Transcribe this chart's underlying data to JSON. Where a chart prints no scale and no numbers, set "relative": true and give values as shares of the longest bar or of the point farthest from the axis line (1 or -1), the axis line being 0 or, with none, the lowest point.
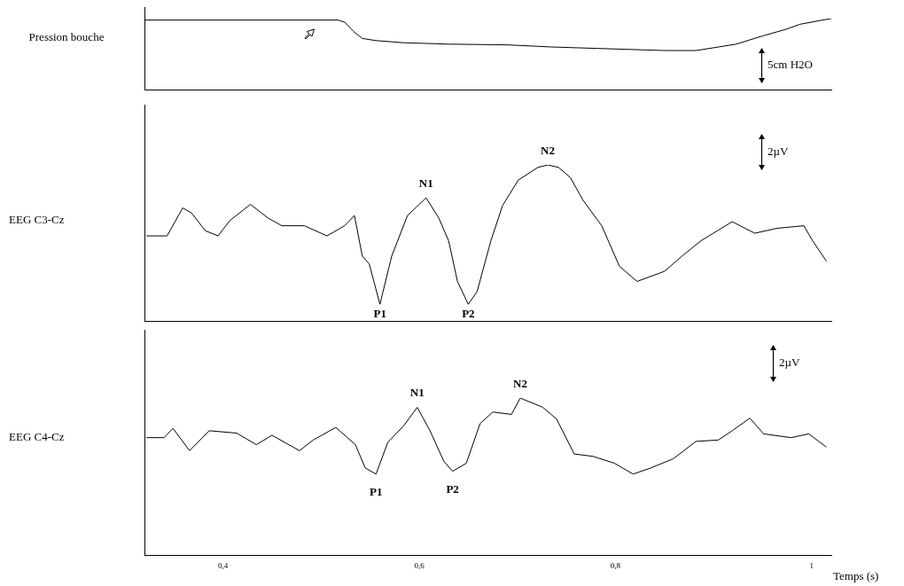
{
  "chart_data": [
    {
      "type": "line",
      "relative": true,
      "ylabel": "Pression bouche",
      "tick_labels": false,
      "xlim": [
        0.32,
        1.02
      ],
      "color": "#000000",
      "marker": "none",
      "annotations": [
        "5cm H2O"
      ],
      "x": [
        0.32,
        0.517,
        0.524,
        0.533,
        0.542,
        0.556,
        0.584,
        0.63,
        0.689,
        0.735,
        0.781,
        0.85,
        0.882,
        0.905,
        0.923,
        0.951,
        0.974,
        0.988,
        1.011,
        1.02
      ],
      "values": [
        0.98,
        0.98,
        0.95,
        0.82,
        0.72,
        0.69,
        0.66,
        0.64,
        0.63,
        0.6,
        0.58,
        0.55,
        0.55,
        0.6,
        0.64,
        0.76,
        0.85,
        0.92,
        0.98,
        1
      ]
    },
    {
      "type": "line",
      "relative": true,
      "ylabel": "EEG C3-Cz",
      "tick_labels": false,
      "xlim": [
        0.32,
        1.02
      ],
      "color": "#000000",
      "marker": "none",
      "annotations": [
        "2µV",
        {
          "text": "P1",
          "x": 0.56,
          "y": 0.107
        },
        {
          "text": "N1",
          "x": 0.607,
          "y": 0.789
        },
        {
          "text": "P2",
          "x": 0.65,
          "y": 0.107
        },
        {
          "text": "N2",
          "x": 0.731,
          "y": 1
        }
      ],
      "x": [
        0.322,
        0.343,
        0.359,
        0.368,
        0.382,
        0.395,
        0.407,
        0.428,
        0.446,
        0.46,
        0.483,
        0.506,
        0.524,
        0.534,
        0.542,
        0.549,
        0.56,
        0.572,
        0.588,
        0.607,
        0.62,
        0.63,
        0.639,
        0.65,
        0.659,
        0.673,
        0.685,
        0.701,
        0.721,
        0.731,
        0.742,
        0.754,
        0.767,
        0.786,
        0.804,
        0.822,
        0.85,
        0.868,
        0.887,
        0.919,
        0.942,
        0.965,
        0.992,
        1.001,
        1.015
      ],
      "values": [
        0.545,
        0.545,
        0.724,
        0.692,
        0.578,
        0.545,
        0.643,
        0.747,
        0.659,
        0.61,
        0.61,
        0.545,
        0.61,
        0.675,
        0.416,
        0.367,
        0.107,
        0.416,
        0.675,
        0.789,
        0.659,
        0.513,
        0.253,
        0.107,
        0.188,
        0.513,
        0.74,
        0.903,
        0.984,
        1,
        0.984,
        0.919,
        0.773,
        0.61,
        0.351,
        0.253,
        0.318,
        0.416,
        0.513,
        0.636,
        0.562,
        0.594,
        0.61,
        0.513,
        0.383
      ]
    },
    {
      "type": "line",
      "relative": true,
      "ylabel": "EEG C4-Cz",
      "xlabel": "Temps (s)",
      "tick_labels": "x",
      "xlim": [
        0.32,
        1.02
      ],
      "xticks": [
        {
          "value": 0.4,
          "label": "0,4"
        },
        {
          "value": 0.6,
          "label": "0,6"
        },
        {
          "value": 0.8,
          "label": "0,8"
        },
        1
      ],
      "color": "#000000",
      "marker": "none",
      "annotations": [
        "2µV",
        {
          "text": "P1",
          "x": 0.556,
          "y": 0.516
        },
        {
          "text": "N1",
          "x": 0.598,
          "y": 0.941
        },
        {
          "text": "P2",
          "x": 0.634,
          "y": 0.534
        },
        {
          "text": "N2",
          "x": 0.703,
          "y": 1
        }
      ],
      "x": [
        0.322,
        0.34,
        0.349,
        0.366,
        0.386,
        0.414,
        0.434,
        0.45,
        0.478,
        0.492,
        0.515,
        0.535,
        0.545,
        0.556,
        0.568,
        0.584,
        0.598,
        0.611,
        0.625,
        0.634,
        0.648,
        0.662,
        0.675,
        0.694,
        0.703,
        0.726,
        0.74,
        0.758,
        0.777,
        0.799,
        0.818,
        0.836,
        0.859,
        0.882,
        0.905,
        0.919,
        0.937,
        0.951,
        0.979,
        0.997,
        1.015
      ],
      "values": [
        0.748,
        0.748,
        0.807,
        0.665,
        0.792,
        0.777,
        0.703,
        0.763,
        0.665,
        0.733,
        0.813,
        0.703,
        0.555,
        0.516,
        0.718,
        0.822,
        0.941,
        0.792,
        0.599,
        0.534,
        0.585,
        0.837,
        0.911,
        0.896,
        1,
        0.941,
        0.866,
        0.644,
        0.629,
        0.585,
        0.516,
        0.555,
        0.614,
        0.724,
        0.733,
        0.792,
        0.872,
        0.772,
        0.748,
        0.772,
        0.688
      ]
    }
  ]
}
